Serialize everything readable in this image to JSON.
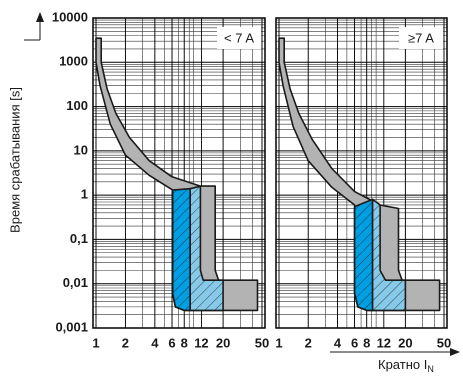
{
  "chart_data": [
    {
      "type": "area",
      "annotation": "< 7 A",
      "ylabel": "Время срабатывания [s]",
      "xscale": "log",
      "yscale": "log",
      "xlim": [
        1,
        50
      ],
      "ylim": [
        0.001,
        10000
      ],
      "xticks": [
        1,
        2,
        4,
        6,
        8,
        12,
        20,
        50
      ],
      "yticks": [
        10000,
        1000,
        100,
        10,
        1,
        {
          "value": 0.1,
          "label": "0,1"
        },
        {
          "value": 0.01,
          "label": "0,01"
        },
        {
          "value": 0.001,
          "label": "0,001"
        }
      ],
      "ytick_labels": true,
      "grid": true,
      "series": [
        {
          "color": "#b3b3b3",
          "stroke": "#1a1a1a",
          "hatch": false,
          "x": [
            1,
            1.13,
            1.13,
            1.3,
            1.6,
            2.2,
            3.5,
            6,
            11.7,
            16.6,
            16.6,
            18,
            45,
            45,
            8,
            6.5,
            6.1,
            6.1,
            3.5,
            2,
            1.4,
            1.1,
            1,
            1
          ],
          "values": [
            3500,
            3500,
            1000,
            250,
            70,
            20,
            6,
            2.6,
            1.6,
            1.6,
            0.02,
            0.012,
            0.012,
            0.0025,
            0.0025,
            0.003,
            0.006,
            1.3,
            2.8,
            8,
            40,
            300,
            1000,
            3500
          ]
        },
        {
          "color": "#009fe3",
          "stroke": "#1a1a1a",
          "hatch": true,
          "x": [
            6.1,
            9.2,
            9.2,
            8,
            6.5,
            6.1
          ],
          "values": [
            1.3,
            1.4,
            0.0025,
            0.0025,
            0.003,
            0.006
          ]
        },
        {
          "color": "#86c9e8",
          "stroke": "#1a1a1a",
          "hatch": true,
          "x": [
            9.2,
            11.7,
            11.7,
            12.5,
            20,
            20,
            9.2
          ],
          "values": [
            1.4,
            1.6,
            0.02,
            0.012,
            0.012,
            0.0025,
            0.0025
          ]
        }
      ]
    },
    {
      "type": "area",
      "annotation": "≥7 A",
      "xlabel": "Кратно I",
      "xlabel_subscript": "N",
      "xscale": "log",
      "yscale": "log",
      "xlim": [
        1,
        50
      ],
      "ylim": [
        0.001,
        10000
      ],
      "xticks": [
        1,
        2,
        4,
        6,
        8,
        12,
        20,
        50
      ],
      "yticks": [
        10000,
        1000,
        100,
        10,
        1,
        0.1,
        0.01,
        0.001
      ],
      "ytick_labels": false,
      "grid": true,
      "series": [
        {
          "color": "#b3b3b3",
          "stroke": "#1a1a1a",
          "hatch": false,
          "x": [
            1,
            1.13,
            1.13,
            1.3,
            1.6,
            2.2,
            3.5,
            6,
            11,
            17,
            17,
            18.5,
            45,
            45,
            8,
            6.5,
            6,
            6,
            3.5,
            2,
            1.4,
            1.1,
            1,
            1
          ],
          "values": [
            3500,
            3500,
            1000,
            250,
            70,
            18,
            4,
            1.2,
            0.6,
            0.5,
            0.02,
            0.012,
            0.012,
            0.0025,
            0.0025,
            0.003,
            0.006,
            0.6,
            1.5,
            6,
            35,
            300,
            1000,
            3500
          ]
        },
        {
          "color": "#009fe3",
          "stroke": "#1a1a1a",
          "hatch": true,
          "x": [
            6,
            9.2,
            9.2,
            8,
            6.5,
            6
          ],
          "values": [
            0.55,
            0.8,
            0.0025,
            0.0025,
            0.003,
            0.006
          ]
        },
        {
          "color": "#86c9e8",
          "stroke": "#1a1a1a",
          "hatch": true,
          "x": [
            9.2,
            11,
            11,
            12.5,
            20,
            20,
            9.2
          ],
          "values": [
            0.8,
            0.6,
            0.02,
            0.012,
            0.012,
            0.0025,
            0.0025
          ]
        }
      ]
    }
  ]
}
